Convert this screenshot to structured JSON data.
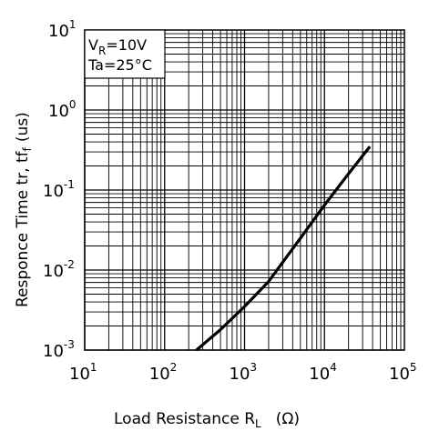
{
  "chart_data": {
    "type": "line",
    "xlabel": "Load Resistance R",
    "xlabel_subscript": "L",
    "xlabel_unit": "(Ω)",
    "ylabel": "Responce Time tr, tf",
    "ylabel_subscript": "f",
    "ylabel_unit": "(us)",
    "x_scale": "log",
    "y_scale": "log",
    "xlim": [
      10,
      100000
    ],
    "ylim": [
      0.001,
      10
    ],
    "grid": true,
    "x_ticks": [
      {
        "base": "10",
        "exp": "1"
      },
      {
        "base": "10",
        "exp": "2"
      },
      {
        "base": "10",
        "exp": "3"
      },
      {
        "base": "10",
        "exp": "4"
      },
      {
        "base": "10",
        "exp": "5"
      }
    ],
    "y_ticks": [
      {
        "base": "10",
        "exp": "-3"
      },
      {
        "base": "10",
        "exp": "-2"
      },
      {
        "base": "10",
        "exp": "-1"
      },
      {
        "base": "10",
        "exp": "0"
      },
      {
        "base": "10",
        "exp": "1"
      }
    ],
    "conditions": [
      {
        "label": "V",
        "subscript": "R",
        "value": "=10V"
      },
      {
        "label": "Ta",
        "subscript": "",
        "value": "=25°C"
      }
    ],
    "series": [
      {
        "x": [
          250,
          500,
          1000,
          2000,
          5000,
          10000,
          20000,
          37000
        ],
        "y": [
          0.001,
          0.0018,
          0.0035,
          0.0072,
          0.025,
          0.065,
          0.16,
          0.35
        ]
      }
    ]
  }
}
